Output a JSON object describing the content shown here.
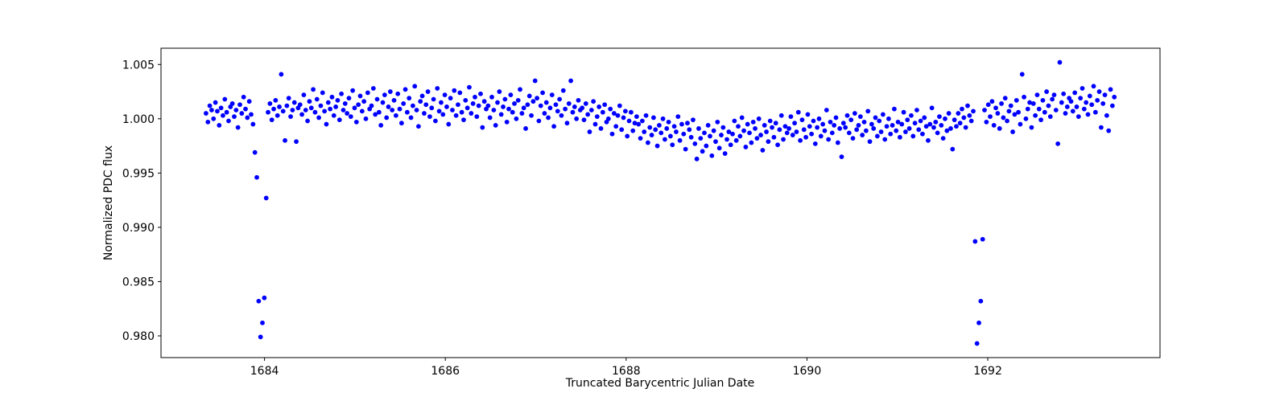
{
  "figure": {
    "background": "#ffffff",
    "spine_color": "#000000"
  },
  "chart_data": {
    "type": "scatter",
    "title": "",
    "xlabel": "Truncated Barycentric Julian Date",
    "ylabel": "Normalized PDC flux",
    "grid": false,
    "legend": null,
    "xlim": [
      1682.855,
      1693.905
    ],
    "ylim": [
      0.978,
      1.0065
    ],
    "xticks": {
      "values": [
        1684,
        1686,
        1688,
        1690,
        1692
      ],
      "labels": [
        "1684",
        "1686",
        "1688",
        "1690",
        "1692"
      ]
    },
    "yticks": {
      "values": [
        0.98,
        0.985,
        0.99,
        0.995,
        1.0,
        1.005
      ],
      "labels": [
        "0.980",
        "0.985",
        "0.990",
        "0.995",
        "1.000",
        "1.005"
      ]
    },
    "marker": {
      "shape": "circle",
      "color": "#0000ff",
      "radius": 2.9
    },
    "series": [
      {
        "name": "normalized-pdc-flux",
        "x_start": 1683.353,
        "x_step": 0.0208,
        "flux_base": 1.0,
        "flux_offset_scale": 0.0001,
        "flux_offsets_1e4": [
          5,
          -3,
          12,
          8,
          0,
          15,
          7,
          -6,
          10,
          3,
          18,
          6,
          -2,
          11,
          14,
          2,
          8,
          -8,
          13,
          5,
          20,
          9,
          1,
          16,
          4,
          -5,
          -31,
          -54,
          -168,
          -201,
          -188,
          -165,
          -73,
          6,
          14,
          -1,
          9,
          17,
          3,
          11,
          41,
          7,
          -20,
          12,
          19,
          2,
          8,
          15,
          -21,
          10,
          13,
          4,
          22,
          8,
          -2,
          16,
          10,
          27,
          6,
          18,
          1,
          12,
          24,
          7,
          -5,
          15,
          9,
          20,
          3,
          11,
          17,
          -1,
          23,
          8,
          14,
          5,
          19,
          2,
          26,
          10,
          -3,
          13,
          21,
          7,
          16,
          0,
          24,
          9,
          12,
          28,
          4,
          18,
          6,
          -6,
          15,
          22,
          1,
          11,
          25,
          8,
          17,
          3,
          23,
          9,
          -4,
          14,
          27,
          6,
          19,
          1,
          12,
          30,
          8,
          -7,
          16,
          21,
          5,
          13,
          25,
          2,
          10,
          18,
          -2,
          28,
          7,
          15,
          4,
          22,
          11,
          -5,
          19,
          8,
          26,
          3,
          13,
          24,
          6,
          -1,
          17,
          10,
          29,
          5,
          14,
          20,
          2,
          12,
          23,
          -8,
          16,
          9,
          12,
          1,
          20,
          8,
          -6,
          15,
          25,
          4,
          11,
          18,
          -3,
          9,
          22,
          6,
          14,
          0,
          17,
          27,
          5,
          10,
          -9,
          13,
          21,
          3,
          16,
          35,
          19,
          -2,
          12,
          24,
          5,
          15,
          1,
          10,
          22,
          -7,
          13,
          7,
          18,
          3,
          26,
          9,
          -4,
          14,
          35,
          6,
          11,
          0,
          17,
          8,
          10,
          -1,
          14,
          4,
          -12,
          8,
          16,
          -5,
          2,
          11,
          -9,
          6,
          13,
          -3,
          0,
          9,
          -14,
          5,
          -7,
          3,
          12,
          -10,
          1,
          7,
          -16,
          -2,
          6,
          -11,
          -4,
          2,
          -5,
          -18,
          -2,
          -12,
          3,
          -22,
          -8,
          -15,
          1,
          -10,
          -25,
          -6,
          -13,
          0,
          -19,
          -9,
          -3,
          -16,
          -24,
          -7,
          -12,
          2,
          -20,
          -5,
          -14,
          -28,
          -4,
          -10,
          -17,
          -1,
          -23,
          -37,
          -9,
          -18,
          -30,
          -13,
          -25,
          -6,
          -16,
          -34,
          -11,
          -21,
          -3,
          -27,
          -15,
          -8,
          -32,
          -19,
          -12,
          -24,
          -14,
          -2,
          -20,
          -7,
          -16,
          1,
          -11,
          -26,
          -5,
          -13,
          -22,
          -3,
          -9,
          -18,
          0,
          -15,
          -29,
          -6,
          -12,
          -21,
          -2,
          -8,
          -17,
          -4,
          -24,
          -10,
          3,
          -19,
          -7,
          -13,
          -9,
          2,
          -15,
          -4,
          -12,
          6,
          -20,
          -1,
          -10,
          -17,
          4,
          -7,
          -14,
          -2,
          -23,
          -8,
          0,
          -16,
          -5,
          -11,
          8,
          -19,
          -3,
          -13,
          -6,
          1,
          -22,
          -9,
          -35,
          -4,
          -8,
          3,
          -13,
          -1,
          -18,
          5,
          -10,
          -6,
          2,
          -15,
          -3,
          -11,
          7,
          -21,
          -5,
          -9,
          1,
          -16,
          -2,
          -12,
          4,
          -19,
          -7,
          0,
          -14,
          -6,
          9,
          -11,
          -3,
          -17,
          -5,
          6,
          -12,
          -1,
          -9,
          3,
          -16,
          -4,
          8,
          -10,
          -2,
          -14,
          1,
          -7,
          -20,
          -5,
          10,
          -8,
          -3,
          -13,
          2,
          -6,
          -18,
          0,
          -11,
          5,
          -9,
          -28,
          -1,
          -7,
          5,
          -4,
          9,
          1,
          -8,
          12,
          3,
          -2,
          7,
          -113,
          -207,
          -188,
          -168,
          -111,
          8,
          -3,
          13,
          2,
          16,
          -6,
          10,
          5,
          -9,
          14,
          1,
          19,
          -2,
          7,
          12,
          -12,
          4,
          17,
          6,
          -5,
          41,
          20,
          0,
          9,
          15,
          -8,
          14,
          3,
          22,
          9,
          -1,
          17,
          6,
          25,
          12,
          2,
          18,
          22,
          8,
          -23,
          52,
          15,
          23,
          5,
          11,
          19,
          16,
          7,
          24,
          11,
          2,
          19,
          28,
          9,
          15,
          4,
          21,
          13,
          30,
          6,
          17,
          25,
          -8,
          14,
          22,
          3,
          -11,
          27,
          12,
          20
        ]
      }
    ]
  }
}
